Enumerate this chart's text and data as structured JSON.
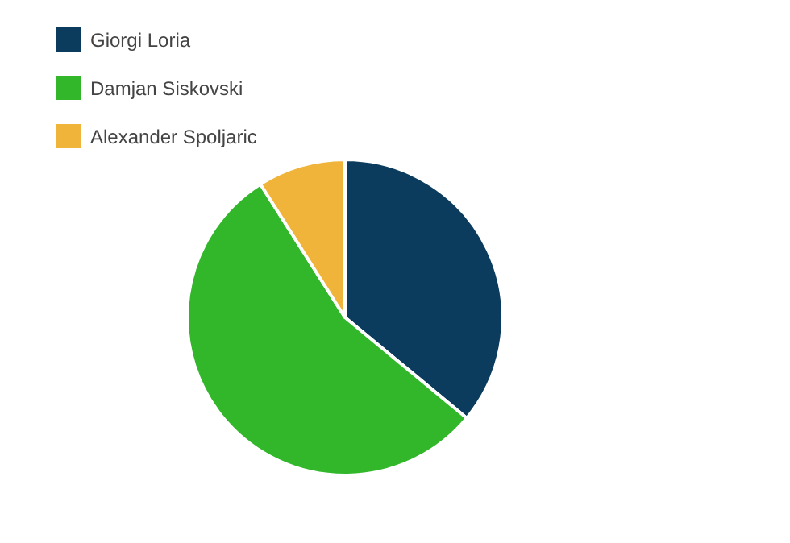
{
  "chart_data": {
    "type": "pie",
    "categories": [
      "Giorgi Loria",
      "Damjan Siskovski",
      "Alexander Spoljaric"
    ],
    "values": [
      36,
      55,
      9
    ],
    "colors": [
      "#0b3c5d",
      "#32b72b",
      "#f0b43a"
    ],
    "legend": "top left"
  }
}
